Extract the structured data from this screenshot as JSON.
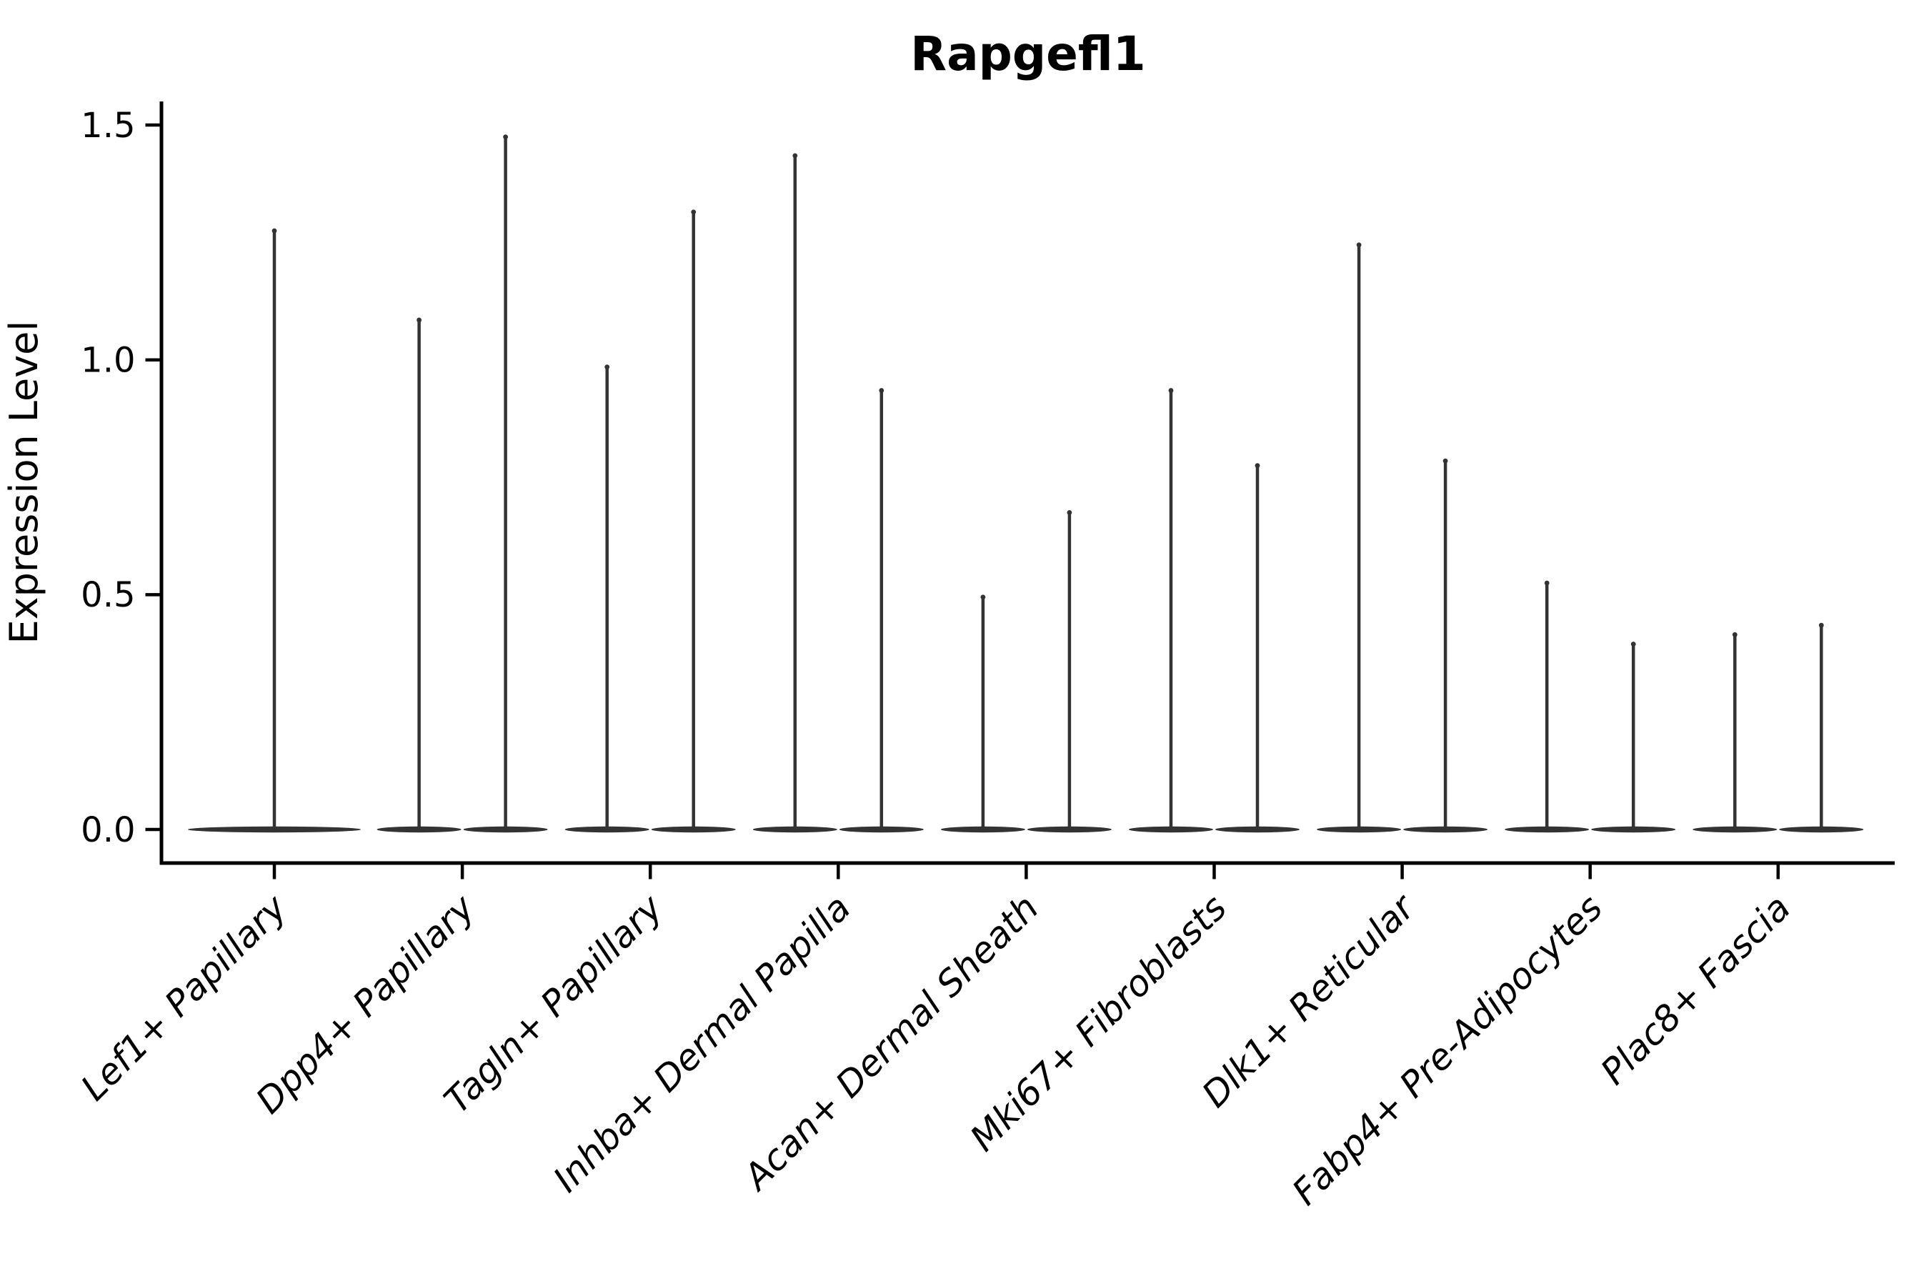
{
  "chart_data": {
    "type": "violin",
    "title": "Rapgefl1",
    "ylabel": "Expression Level",
    "xlabel": "",
    "ytick_labels": [
      "0.0",
      "0.5",
      "1.0",
      "1.5"
    ],
    "ytick_values": [
      0.0,
      0.5,
      1.0,
      1.5
    ],
    "ylim": [
      -0.07,
      1.56
    ],
    "grid": false,
    "legend": "none",
    "categories": [
      "Lef1+ Papillary",
      "Dpp4+ Papillary",
      "Tagln+ Papillary",
      "Inhba+ Dermal Papilla",
      "Acan+ Dermal Sheath",
      "Mki67+ Fibroblasts",
      "Dlk1+ Reticular",
      "Fabp4+ Pre-Adipocytes",
      "Plac8+ Fascia"
    ],
    "violins_per_category": [
      1,
      2,
      2,
      2,
      2,
      2,
      2,
      2,
      2
    ],
    "max_expression": [
      [
        1.28
      ],
      [
        1.09,
        1.48
      ],
      [
        0.99,
        1.32
      ],
      [
        1.44,
        0.94
      ],
      [
        0.5,
        0.68
      ],
      [
        0.94,
        0.78
      ],
      [
        1.25,
        0.79
      ],
      [
        0.53,
        0.4
      ],
      [
        0.42,
        0.44
      ]
    ],
    "violin_shape_note": "Each violin is a near-flat dense base at expression 0 with a single thin spike rising to the max expression value; most cells have zero expression.",
    "colors": {
      "violin": "#333333",
      "axis": "#000000",
      "text": "#000000",
      "background": "#ffffff"
    }
  }
}
